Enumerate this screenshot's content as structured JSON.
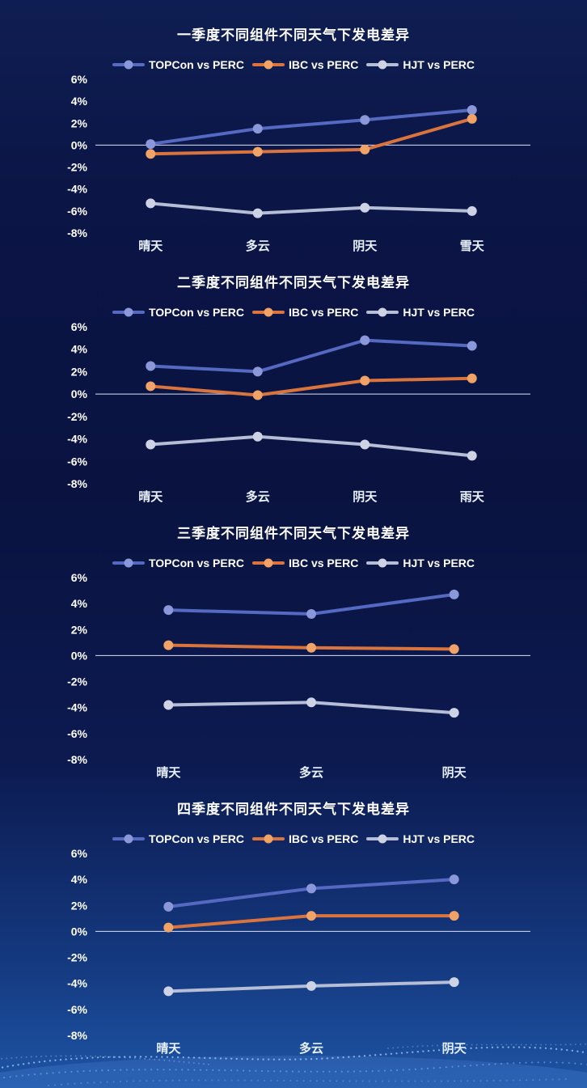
{
  "theme": {
    "background_top": "#0f1e52",
    "background_mid": "#0a1340",
    "background_bottom": "#1e55a5",
    "title_color": "#ffffff",
    "axis_label_color": "#e8f0fa",
    "zero_line_color": "#dce3f5"
  },
  "chart_data": [
    {
      "type": "line",
      "title": "一季度不同组件不同天气下发电差异",
      "categories": [
        "晴天",
        "多云",
        "阴天",
        "雪天"
      ],
      "y_ticks": [
        "6%",
        "4%",
        "2%",
        "0%",
        "-2%",
        "-4%",
        "-6%",
        "-8%"
      ],
      "ylim": [
        -8,
        6
      ],
      "grid": false,
      "legend_position": "top",
      "series": [
        {
          "name": "TOPCon vs PERC",
          "color": "#5569c2",
          "marker_color": "#8a97d8",
          "values": [
            0.1,
            1.5,
            2.3,
            3.2
          ]
        },
        {
          "name": "IBC vs PERC",
          "color": "#d9743f",
          "marker_color": "#f0a267",
          "values": [
            -0.8,
            -0.6,
            -0.4,
            2.4
          ]
        },
        {
          "name": "HJT vs PERC",
          "color": "#b6bdd6",
          "marker_color": "#cdd3e4",
          "values": [
            -5.3,
            -6.2,
            -5.7,
            -6.0
          ]
        }
      ]
    },
    {
      "type": "line",
      "title": "二季度不同组件不同天气下发电差异",
      "categories": [
        "晴天",
        "多云",
        "阴天",
        "雨天"
      ],
      "y_ticks": [
        "6%",
        "4%",
        "2%",
        "0%",
        "-2%",
        "-4%",
        "-6%",
        "-8%"
      ],
      "ylim": [
        -8,
        6
      ],
      "grid": false,
      "legend_position": "top",
      "series": [
        {
          "name": "TOPCon vs PERC",
          "color": "#5569c2",
          "marker_color": "#8a97d8",
          "values": [
            2.5,
            2.0,
            4.8,
            4.3
          ]
        },
        {
          "name": "IBC vs PERC",
          "color": "#d9743f",
          "marker_color": "#f0a267",
          "values": [
            0.7,
            -0.1,
            1.2,
            1.4
          ]
        },
        {
          "name": "HJT vs PERC",
          "color": "#b6bdd6",
          "marker_color": "#cdd3e4",
          "values": [
            -4.5,
            -3.8,
            -4.5,
            -5.5
          ]
        }
      ]
    },
    {
      "type": "line",
      "title": "三季度不同组件不同天气下发电差异",
      "categories": [
        "晴天",
        "多云",
        "阴天"
      ],
      "y_ticks": [
        "6%",
        "4%",
        "2%",
        "0%",
        "-2%",
        "-4%",
        "-6%",
        "-8%"
      ],
      "ylim": [
        -8,
        6
      ],
      "grid": false,
      "legend_position": "top",
      "series": [
        {
          "name": "TOPCon vs PERC",
          "color": "#5569c2",
          "marker_color": "#8a97d8",
          "values": [
            3.5,
            3.2,
            4.7
          ]
        },
        {
          "name": "IBC vs PERC",
          "color": "#d9743f",
          "marker_color": "#f0a267",
          "values": [
            0.8,
            0.6,
            0.5
          ]
        },
        {
          "name": "HJT vs PERC",
          "color": "#b6bdd6",
          "marker_color": "#cdd3e4",
          "values": [
            -3.8,
            -3.6,
            -4.4
          ]
        }
      ]
    },
    {
      "type": "line",
      "title": "四季度不同组件不同天气下发电差异",
      "categories": [
        "晴天",
        "多云",
        "阴天"
      ],
      "y_ticks": [
        "6%",
        "4%",
        "2%",
        "0%",
        "-2%",
        "-4%",
        "-6%",
        "-8%"
      ],
      "ylim": [
        -8,
        6
      ],
      "grid": false,
      "legend_position": "top",
      "series": [
        {
          "name": "TOPCon vs PERC",
          "color": "#5569c2",
          "marker_color": "#8a97d8",
          "values": [
            1.9,
            3.3,
            4.0
          ]
        },
        {
          "name": "IBC vs PERC",
          "color": "#d9743f",
          "marker_color": "#f0a267",
          "values": [
            0.3,
            1.2,
            1.2
          ]
        },
        {
          "name": "HJT vs PERC",
          "color": "#b6bdd6",
          "marker_color": "#cdd3e4",
          "values": [
            -4.6,
            -4.2,
            -3.9
          ]
        }
      ]
    }
  ]
}
